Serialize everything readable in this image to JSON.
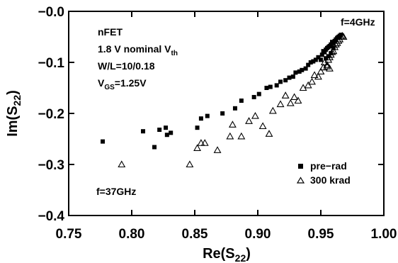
{
  "chart_data": {
    "type": "scatter",
    "xlabel_main": "Re(S",
    "xlabel_sub": "22",
    "xlabel_tail": ")",
    "ylabel_main": "Im(S",
    "ylabel_sub": "22",
    "ylabel_tail": ")",
    "xlim": [
      0.75,
      1.0
    ],
    "ylim": [
      -0.4,
      0.0
    ],
    "xticks": [
      "0.75",
      "0.80",
      "0.85",
      "0.90",
      "0.95",
      "1.00"
    ],
    "yticks": [
      "−0.0",
      "−0.1",
      "−0.2",
      "−0.3",
      "−0.4"
    ],
    "grid": false,
    "legend_placement": "bottom-right",
    "annotations": {
      "device_lines": [
        "nFET",
        "1.8 V nominal V",
        "W/L=10/0.18",
        "V"
      ],
      "vth_sub": "th",
      "vgs_sub": "GS",
      "vgs_tail": "=1.25V",
      "f_high": "f=4GHz",
      "f_low": "f=37GHz"
    },
    "series": [
      {
        "name": "pre−rad",
        "marker": "filled-square",
        "x": [
          0.777,
          0.809,
          0.818,
          0.822,
          0.827,
          0.828,
          0.831,
          0.852,
          0.855,
          0.86,
          0.872,
          0.882,
          0.887,
          0.897,
          0.901,
          0.907,
          0.91,
          0.915,
          0.918,
          0.922,
          0.925,
          0.928,
          0.93,
          0.933,
          0.935,
          0.938,
          0.94,
          0.942,
          0.944,
          0.946,
          0.948,
          0.95,
          0.951,
          0.952,
          0.953,
          0.954,
          0.955,
          0.956,
          0.957,
          0.958,
          0.959,
          0.96,
          0.961,
          0.962,
          0.963,
          0.964,
          0.965,
          0.966,
          0.96,
          0.958,
          0.956,
          0.954
        ],
        "y": [
          -0.255,
          -0.235,
          -0.266,
          -0.232,
          -0.228,
          -0.242,
          -0.238,
          -0.228,
          -0.21,
          -0.205,
          -0.2,
          -0.19,
          -0.175,
          -0.168,
          -0.162,
          -0.15,
          -0.148,
          -0.145,
          -0.138,
          -0.135,
          -0.13,
          -0.128,
          -0.12,
          -0.118,
          -0.115,
          -0.112,
          -0.105,
          -0.1,
          -0.098,
          -0.095,
          -0.09,
          -0.095,
          -0.085,
          -0.078,
          -0.08,
          -0.075,
          -0.072,
          -0.07,
          -0.068,
          -0.065,
          -0.06,
          -0.062,
          -0.058,
          -0.055,
          -0.052,
          -0.05,
          -0.048,
          -0.046,
          -0.072,
          -0.082,
          -0.088,
          -0.092
        ]
      },
      {
        "name": "300 krad",
        "marker": "open-triangle",
        "x": [
          0.792,
          0.846,
          0.852,
          0.855,
          0.858,
          0.868,
          0.878,
          0.88,
          0.887,
          0.893,
          0.898,
          0.904,
          0.909,
          0.912,
          0.918,
          0.922,
          0.926,
          0.929,
          0.932,
          0.936,
          0.94,
          0.943,
          0.945,
          0.948,
          0.95,
          0.952,
          0.953,
          0.955,
          0.956,
          0.957,
          0.958,
          0.959,
          0.96,
          0.961,
          0.962,
          0.963,
          0.964,
          0.965,
          0.966,
          0.967,
          0.968,
          0.957,
          0.955
        ],
        "y": [
          -0.3,
          -0.3,
          -0.268,
          -0.258,
          -0.258,
          -0.272,
          -0.245,
          -0.222,
          -0.245,
          -0.215,
          -0.205,
          -0.225,
          -0.24,
          -0.195,
          -0.182,
          -0.165,
          -0.18,
          -0.168,
          -0.175,
          -0.15,
          -0.145,
          -0.138,
          -0.125,
          -0.128,
          -0.118,
          -0.11,
          -0.1,
          -0.105,
          -0.095,
          -0.09,
          -0.085,
          -0.08,
          -0.078,
          -0.07,
          -0.065,
          -0.062,
          -0.058,
          -0.055,
          -0.05,
          -0.048,
          -0.05,
          -0.112,
          -0.108
        ]
      }
    ]
  }
}
